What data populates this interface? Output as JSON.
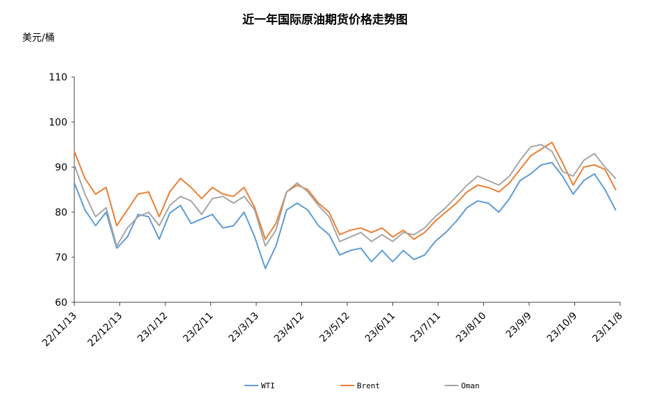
{
  "chart_data": {
    "type": "line",
    "title": "近一年国际原油期货价格走势图",
    "ylabel": "美元/桶",
    "xlabel": "",
    "ylim": [
      60,
      110
    ],
    "yticks": [
      60,
      70,
      80,
      90,
      100,
      110
    ],
    "xticks": [
      "22/11/13",
      "22/12/13",
      "23/1/12",
      "23/2/11",
      "23/3/13",
      "23/4/12",
      "23/5/12",
      "23/6/11",
      "23/7/11",
      "23/8/10",
      "23/9/9",
      "23/10/9",
      "23/11/8"
    ],
    "grid": false,
    "legend_position": "bottom",
    "colors": {
      "WTI": "#5b9bd5",
      "Brent": "#ed7d31",
      "Oman": "#a5a5a5"
    },
    "series": [
      {
        "name": "WTI",
        "values": [
          [
            "22/11/13",
            86.5
          ],
          [
            "22/11/20",
            80.5
          ],
          [
            "22/11/27",
            77.0
          ],
          [
            "22/12/4",
            80.0
          ],
          [
            "22/12/11",
            72.0
          ],
          [
            "22/12/18",
            74.5
          ],
          [
            "22/12/25",
            79.5
          ],
          [
            "23/1/1",
            79.0
          ],
          [
            "23/1/8",
            74.0
          ],
          [
            "23/1/15",
            79.8
          ],
          [
            "23/1/22",
            81.5
          ],
          [
            "23/1/29",
            77.5
          ],
          [
            "23/2/5",
            78.5
          ],
          [
            "23/2/12",
            79.5
          ],
          [
            "23/2/19",
            76.5
          ],
          [
            "23/2/26",
            77.0
          ],
          [
            "23/3/5",
            80.0
          ],
          [
            "23/3/12",
            74.5
          ],
          [
            "23/3/19",
            67.5
          ],
          [
            "23/3/26",
            72.5
          ],
          [
            "23/4/2",
            80.5
          ],
          [
            "23/4/9",
            82.0
          ],
          [
            "23/4/16",
            80.5
          ],
          [
            "23/4/23",
            77.0
          ],
          [
            "23/4/30",
            75.0
          ],
          [
            "23/5/7",
            70.5
          ],
          [
            "23/5/14",
            71.5
          ],
          [
            "23/5/21",
            72.0
          ],
          [
            "23/5/28",
            69.0
          ],
          [
            "23/6/4",
            71.5
          ],
          [
            "23/6/11",
            69.0
          ],
          [
            "23/6/18",
            71.5
          ],
          [
            "23/6/25",
            69.5
          ],
          [
            "23/7/2",
            70.5
          ],
          [
            "23/7/9",
            73.5
          ],
          [
            "23/7/16",
            75.5
          ],
          [
            "23/7/23",
            78.0
          ],
          [
            "23/7/30",
            81.0
          ],
          [
            "23/8/6",
            82.5
          ],
          [
            "23/8/13",
            82.0
          ],
          [
            "23/8/20",
            80.0
          ],
          [
            "23/8/27",
            83.0
          ],
          [
            "23/9/3",
            87.0
          ],
          [
            "23/9/10",
            88.5
          ],
          [
            "23/9/17",
            90.5
          ],
          [
            "23/9/24",
            91.0
          ],
          [
            "23/10/1",
            88.0
          ],
          [
            "23/10/8",
            84.0
          ],
          [
            "23/10/15",
            87.0
          ],
          [
            "23/10/22",
            88.5
          ],
          [
            "23/10/29",
            85.0
          ],
          [
            "23/11/5",
            80.5
          ]
        ]
      },
      {
        "name": "Brent",
        "values": [
          [
            "22/11/13",
            93.5
          ],
          [
            "22/11/20",
            87.5
          ],
          [
            "22/11/27",
            84.0
          ],
          [
            "22/12/4",
            85.5
          ],
          [
            "22/12/11",
            77.0
          ],
          [
            "22/12/18",
            80.5
          ],
          [
            "22/12/25",
            84.0
          ],
          [
            "23/1/1",
            84.5
          ],
          [
            "23/1/8",
            79.0
          ],
          [
            "23/1/15",
            84.5
          ],
          [
            "23/1/22",
            87.5
          ],
          [
            "23/1/29",
            85.5
          ],
          [
            "23/2/5",
            83.0
          ],
          [
            "23/2/12",
            85.5
          ],
          [
            "23/2/19",
            84.0
          ],
          [
            "23/2/26",
            83.5
          ],
          [
            "23/3/5",
            85.5
          ],
          [
            "23/3/12",
            81.0
          ],
          [
            "23/3/19",
            74.0
          ],
          [
            "23/3/26",
            77.5
          ],
          [
            "23/4/2",
            84.5
          ],
          [
            "23/4/9",
            86.0
          ],
          [
            "23/4/16",
            85.0
          ],
          [
            "23/4/23",
            82.0
          ],
          [
            "23/4/30",
            80.0
          ],
          [
            "23/5/7",
            75.0
          ],
          [
            "23/5/14",
            76.0
          ],
          [
            "23/5/21",
            76.5
          ],
          [
            "23/5/28",
            75.5
          ],
          [
            "23/6/4",
            76.5
          ],
          [
            "23/6/11",
            74.5
          ],
          [
            "23/6/18",
            76.0
          ],
          [
            "23/6/25",
            74.0
          ],
          [
            "23/7/2",
            75.5
          ],
          [
            "23/7/9",
            78.0
          ],
          [
            "23/7/16",
            80.0
          ],
          [
            "23/7/23",
            82.0
          ],
          [
            "23/7/30",
            84.5
          ],
          [
            "23/8/6",
            86.0
          ],
          [
            "23/8/13",
            85.5
          ],
          [
            "23/8/20",
            84.5
          ],
          [
            "23/8/27",
            86.5
          ],
          [
            "23/9/3",
            89.5
          ],
          [
            "23/9/10",
            92.5
          ],
          [
            "23/9/17",
            94.0
          ],
          [
            "23/9/24",
            95.5
          ],
          [
            "23/10/1",
            91.0
          ],
          [
            "23/10/8",
            86.0
          ],
          [
            "23/10/15",
            90.0
          ],
          [
            "23/10/22",
            90.5
          ],
          [
            "23/10/29",
            89.5
          ],
          [
            "23/11/5",
            85.0
          ]
        ]
      },
      {
        "name": "Oman",
        "values": [
          [
            "22/11/13",
            90.5
          ],
          [
            "22/11/20",
            84.0
          ],
          [
            "22/11/27",
            79.0
          ],
          [
            "22/12/4",
            81.0
          ],
          [
            "22/12/11",
            72.5
          ],
          [
            "22/12/18",
            76.5
          ],
          [
            "22/12/25",
            79.0
          ],
          [
            "23/1/1",
            80.0
          ],
          [
            "23/1/8",
            77.0
          ],
          [
            "23/1/15",
            81.5
          ],
          [
            "23/1/22",
            83.5
          ],
          [
            "23/1/29",
            82.5
          ],
          [
            "23/2/5",
            79.5
          ],
          [
            "23/2/12",
            83.0
          ],
          [
            "23/2/19",
            83.5
          ],
          [
            "23/2/26",
            82.0
          ],
          [
            "23/3/5",
            83.5
          ],
          [
            "23/3/12",
            80.5
          ],
          [
            "23/3/19",
            72.5
          ],
          [
            "23/3/26",
            76.0
          ],
          [
            "23/4/2",
            84.5
          ],
          [
            "23/4/9",
            86.5
          ],
          [
            "23/4/16",
            84.5
          ],
          [
            "23/4/23",
            81.5
          ],
          [
            "23/4/30",
            79.0
          ],
          [
            "23/5/7",
            73.5
          ],
          [
            "23/5/14",
            74.5
          ],
          [
            "23/5/21",
            75.5
          ],
          [
            "23/5/28",
            73.5
          ],
          [
            "23/6/4",
            75.0
          ],
          [
            "23/6/11",
            73.5
          ],
          [
            "23/6/18",
            75.5
          ],
          [
            "23/6/25",
            75.0
          ],
          [
            "23/7/2",
            76.5
          ],
          [
            "23/7/9",
            79.0
          ],
          [
            "23/7/16",
            81.0
          ],
          [
            "23/7/23",
            83.5
          ],
          [
            "23/7/30",
            86.0
          ],
          [
            "23/8/6",
            88.0
          ],
          [
            "23/8/13",
            87.0
          ],
          [
            "23/8/20",
            86.0
          ],
          [
            "23/8/27",
            88.0
          ],
          [
            "23/9/3",
            91.5
          ],
          [
            "23/9/10",
            94.5
          ],
          [
            "23/9/17",
            95.0
          ],
          [
            "23/9/24",
            93.5
          ],
          [
            "23/10/1",
            89.0
          ],
          [
            "23/10/8",
            88.0
          ],
          [
            "23/10/15",
            91.5
          ],
          [
            "23/10/22",
            93.0
          ],
          [
            "23/10/29",
            90.0
          ],
          [
            "23/11/5",
            87.5
          ]
        ]
      }
    ]
  }
}
